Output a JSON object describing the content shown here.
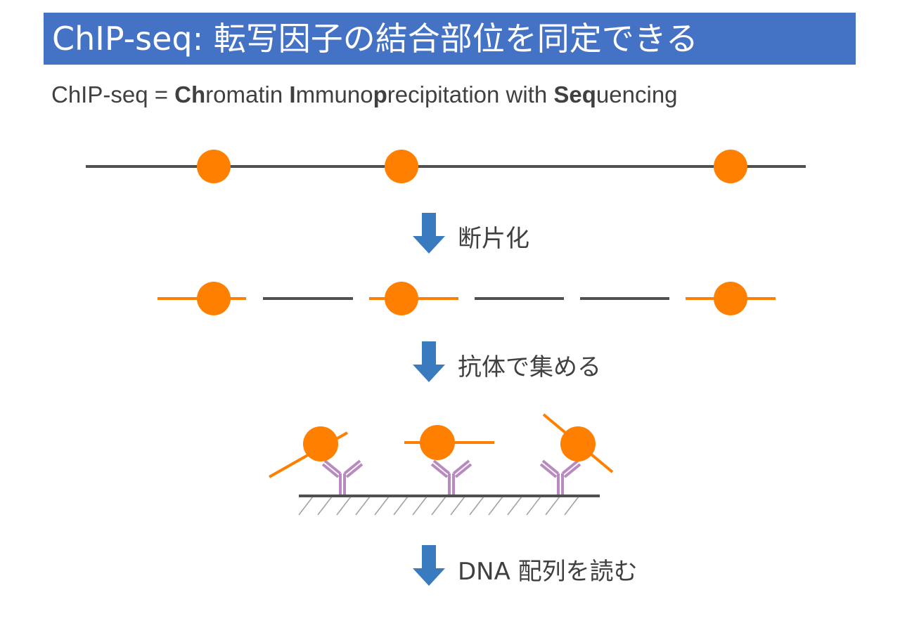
{
  "title": "ChIP-seq: 転写因子の結合部位を同定できる",
  "subtitle": {
    "parts": [
      {
        "text": "ChIP-seq = ",
        "bold": false
      },
      {
        "text": "Ch",
        "bold": true
      },
      {
        "text": "romatin ",
        "bold": false
      },
      {
        "text": "I",
        "bold": true
      },
      {
        "text": "mmuno",
        "bold": false
      },
      {
        "text": "p",
        "bold": true
      },
      {
        "text": "recipitation with ",
        "bold": false
      },
      {
        "text": "Seq",
        "bold": true
      },
      {
        "text": "uencing",
        "bold": false
      }
    ]
  },
  "steps": [
    {
      "label": "断片化"
    },
    {
      "label": "抗体で集める"
    },
    {
      "label": "DNA 配列を読む"
    }
  ],
  "colors": {
    "title_bg": "#4472C4",
    "title_text": "#ffffff",
    "dna_line": "#505050",
    "protein": "#FF8000",
    "bound_fragment": "#FF8000",
    "arrow": "#3A7BBF",
    "antibody": "#B88ABF",
    "surface": "#505050",
    "hatch": "#A0A0A0",
    "text": "#404040"
  }
}
